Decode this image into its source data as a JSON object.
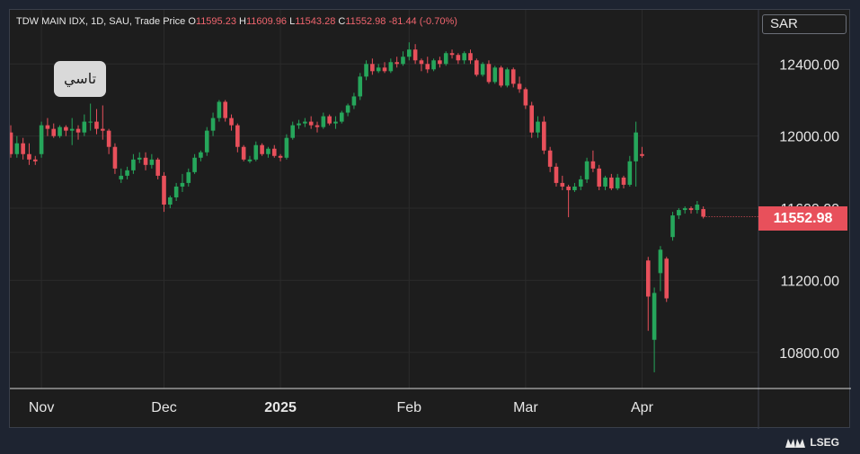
{
  "header": {
    "symbol_info": "TDW MAIN IDX, 1D, SAU, Trade Price",
    "o_label": "O",
    "o_value": "11595.23",
    "h_label": "H",
    "h_value": "11609.96",
    "l_label": "L",
    "l_value": "11543.28",
    "c_label": "C",
    "c_value": "11552.98",
    "change": "-81.44 (-0.70%)"
  },
  "currency": "SAR",
  "badge": "تاسي",
  "last_price": "11552.98",
  "branding": "LSEG",
  "colors": {
    "up": "#26a65b",
    "down": "#e8505b",
    "background": "#1d1d1d",
    "grid": "#2b2b2b"
  },
  "chart_data": {
    "type": "candlestick",
    "y_ticks": [
      "12400.00",
      "12000.00",
      "11600.00",
      "11200.00",
      "10800.00"
    ],
    "x_ticks": [
      {
        "label": "Nov",
        "index": 5
      },
      {
        "label": "Dec",
        "index": 25
      },
      {
        "label": "2025",
        "index": 44
      },
      {
        "label": "Feb",
        "index": 65
      },
      {
        "label": "Mar",
        "index": 84
      },
      {
        "label": "Apr",
        "index": 103
      }
    ],
    "ylim": [
      10600,
      12700
    ],
    "grid": true,
    "candles": [
      [
        12020,
        12060,
        11880,
        11900
      ],
      [
        11900,
        12000,
        11880,
        11960
      ],
      [
        11960,
        11990,
        11870,
        11900
      ],
      [
        11900,
        11960,
        11840,
        11870
      ],
      [
        11870,
        11890,
        11840,
        11860
      ],
      [
        11900,
        12080,
        11880,
        12060
      ],
      [
        12060,
        12100,
        12000,
        12040
      ],
      [
        12040,
        12070,
        11990,
        12000
      ],
      [
        12000,
        12060,
        11990,
        12050
      ],
      [
        12050,
        12060,
        12000,
        12030
      ],
      [
        12030,
        12100,
        11950,
        12040
      ],
      [
        12040,
        12060,
        11980,
        12020
      ],
      [
        12020,
        12120,
        12000,
        12080
      ],
      [
        12080,
        12180,
        12030,
        12080
      ],
      [
        12080,
        12150,
        12010,
        12040
      ],
      [
        12040,
        12170,
        11980,
        12030
      ],
      [
        12030,
        12040,
        11900,
        11940
      ],
      [
        11940,
        11960,
        11790,
        11820
      ],
      [
        11760,
        11820,
        11740,
        11780
      ],
      [
        11780,
        11830,
        11760,
        11810
      ],
      [
        11810,
        11900,
        11790,
        11870
      ],
      [
        11870,
        11910,
        11850,
        11880
      ],
      [
        11880,
        11910,
        11810,
        11840
      ],
      [
        11840,
        11900,
        11820,
        11870
      ],
      [
        11870,
        11880,
        11760,
        11780
      ],
      [
        11780,
        11800,
        11580,
        11620
      ],
      [
        11620,
        11670,
        11600,
        11660
      ],
      [
        11660,
        11740,
        11640,
        11720
      ],
      [
        11720,
        11790,
        11690,
        11740
      ],
      [
        11740,
        11820,
        11720,
        11800
      ],
      [
        11800,
        11900,
        11790,
        11880
      ],
      [
        11880,
        11920,
        11860,
        11910
      ],
      [
        11910,
        12050,
        11890,
        12030
      ],
      [
        12030,
        12130,
        12000,
        12100
      ],
      [
        12100,
        12200,
        12080,
        12190
      ],
      [
        12190,
        12200,
        12080,
        12100
      ],
      [
        12100,
        12120,
        12030,
        12060
      ],
      [
        12060,
        12070,
        11910,
        11940
      ],
      [
        11940,
        11950,
        11860,
        11870
      ],
      [
        11860,
        11890,
        11850,
        11870
      ],
      [
        11870,
        11970,
        11860,
        11950
      ],
      [
        11950,
        11960,
        11890,
        11900
      ],
      [
        11900,
        11940,
        11880,
        11930
      ],
      [
        11930,
        11950,
        11880,
        11890
      ],
      [
        11890,
        11900,
        11860,
        11880
      ],
      [
        11880,
        12010,
        11870,
        11990
      ],
      [
        11990,
        12080,
        11980,
        12060
      ],
      [
        12060,
        12090,
        12040,
        12070
      ],
      [
        12070,
        12100,
        12050,
        12080
      ],
      [
        12080,
        12110,
        12040,
        12060
      ],
      [
        12060,
        12080,
        12020,
        12050
      ],
      [
        12050,
        12130,
        12040,
        12110
      ],
      [
        12110,
        12120,
        12060,
        12070
      ],
      [
        12070,
        12110,
        12040,
        12080
      ],
      [
        12080,
        12140,
        12070,
        12130
      ],
      [
        12130,
        12180,
        12110,
        12170
      ],
      [
        12170,
        12240,
        12150,
        12220
      ],
      [
        12220,
        12350,
        12200,
        12330
      ],
      [
        12330,
        12420,
        12310,
        12400
      ],
      [
        12400,
        12430,
        12340,
        12360
      ],
      [
        12360,
        12400,
        12350,
        12380
      ],
      [
        12380,
        12410,
        12350,
        12360
      ],
      [
        12360,
        12430,
        12350,
        12410
      ],
      [
        12410,
        12440,
        12380,
        12400
      ],
      [
        12400,
        12470,
        12390,
        12440
      ],
      [
        12440,
        12520,
        12420,
        12480
      ],
      [
        12480,
        12510,
        12400,
        12420
      ],
      [
        12420,
        12430,
        12360,
        12400
      ],
      [
        12400,
        12440,
        12350,
        12370
      ],
      [
        12370,
        12430,
        12360,
        12420
      ],
      [
        12420,
        12440,
        12380,
        12400
      ],
      [
        12400,
        12470,
        12390,
        12460
      ],
      [
        12460,
        12480,
        12430,
        12450
      ],
      [
        12450,
        12460,
        12400,
        12420
      ],
      [
        12420,
        12470,
        12400,
        12460
      ],
      [
        12460,
        12480,
        12400,
        12420
      ],
      [
        12420,
        12430,
        12330,
        12340
      ],
      [
        12340,
        12410,
        12330,
        12400
      ],
      [
        12400,
        12420,
        12290,
        12300
      ],
      [
        12300,
        12390,
        12290,
        12380
      ],
      [
        12380,
        12390,
        12270,
        12280
      ],
      [
        12280,
        12380,
        12270,
        12370
      ],
      [
        12370,
        12380,
        12270,
        12290
      ],
      [
        12290,
        12330,
        12240,
        12260
      ],
      [
        12260,
        12270,
        12150,
        12170
      ],
      [
        12170,
        12190,
        11990,
        12020
      ],
      [
        12020,
        12110,
        11990,
        12080
      ],
      [
        12080,
        12110,
        11900,
        11920
      ],
      [
        11920,
        11940,
        11800,
        11830
      ],
      [
        11830,
        11850,
        11720,
        11740
      ],
      [
        11740,
        11780,
        11700,
        11720
      ],
      [
        11720,
        11730,
        11550,
        11700
      ],
      [
        11700,
        11740,
        11690,
        11720
      ],
      [
        11720,
        11780,
        11700,
        11760
      ],
      [
        11760,
        11880,
        11740,
        11860
      ],
      [
        11860,
        11920,
        11800,
        11820
      ],
      [
        11820,
        11840,
        11700,
        11720
      ],
      [
        11720,
        11780,
        11700,
        11770
      ],
      [
        11770,
        11790,
        11700,
        11710
      ],
      [
        11710,
        11790,
        11700,
        11770
      ],
      [
        11770,
        11780,
        11710,
        11730
      ],
      [
        11730,
        11890,
        11720,
        11860
      ],
      [
        11860,
        12080,
        11720,
        12020
      ],
      [
        11900,
        11940,
        11880,
        11890
      ],
      [
        11310,
        11330,
        10920,
        11110
      ],
      [
        10870,
        11160,
        10690,
        11130
      ],
      [
        11240,
        11390,
        11140,
        11370
      ],
      [
        11320,
        11330,
        11080,
        11100
      ],
      [
        11440,
        11580,
        11420,
        11560
      ],
      [
        11560,
        11600,
        11540,
        11590
      ],
      [
        11590,
        11610,
        11570,
        11600
      ],
      [
        11600,
        11610,
        11570,
        11590
      ],
      [
        11590,
        11640,
        11570,
        11620
      ],
      [
        11595,
        11610,
        11543,
        11553
      ]
    ]
  }
}
